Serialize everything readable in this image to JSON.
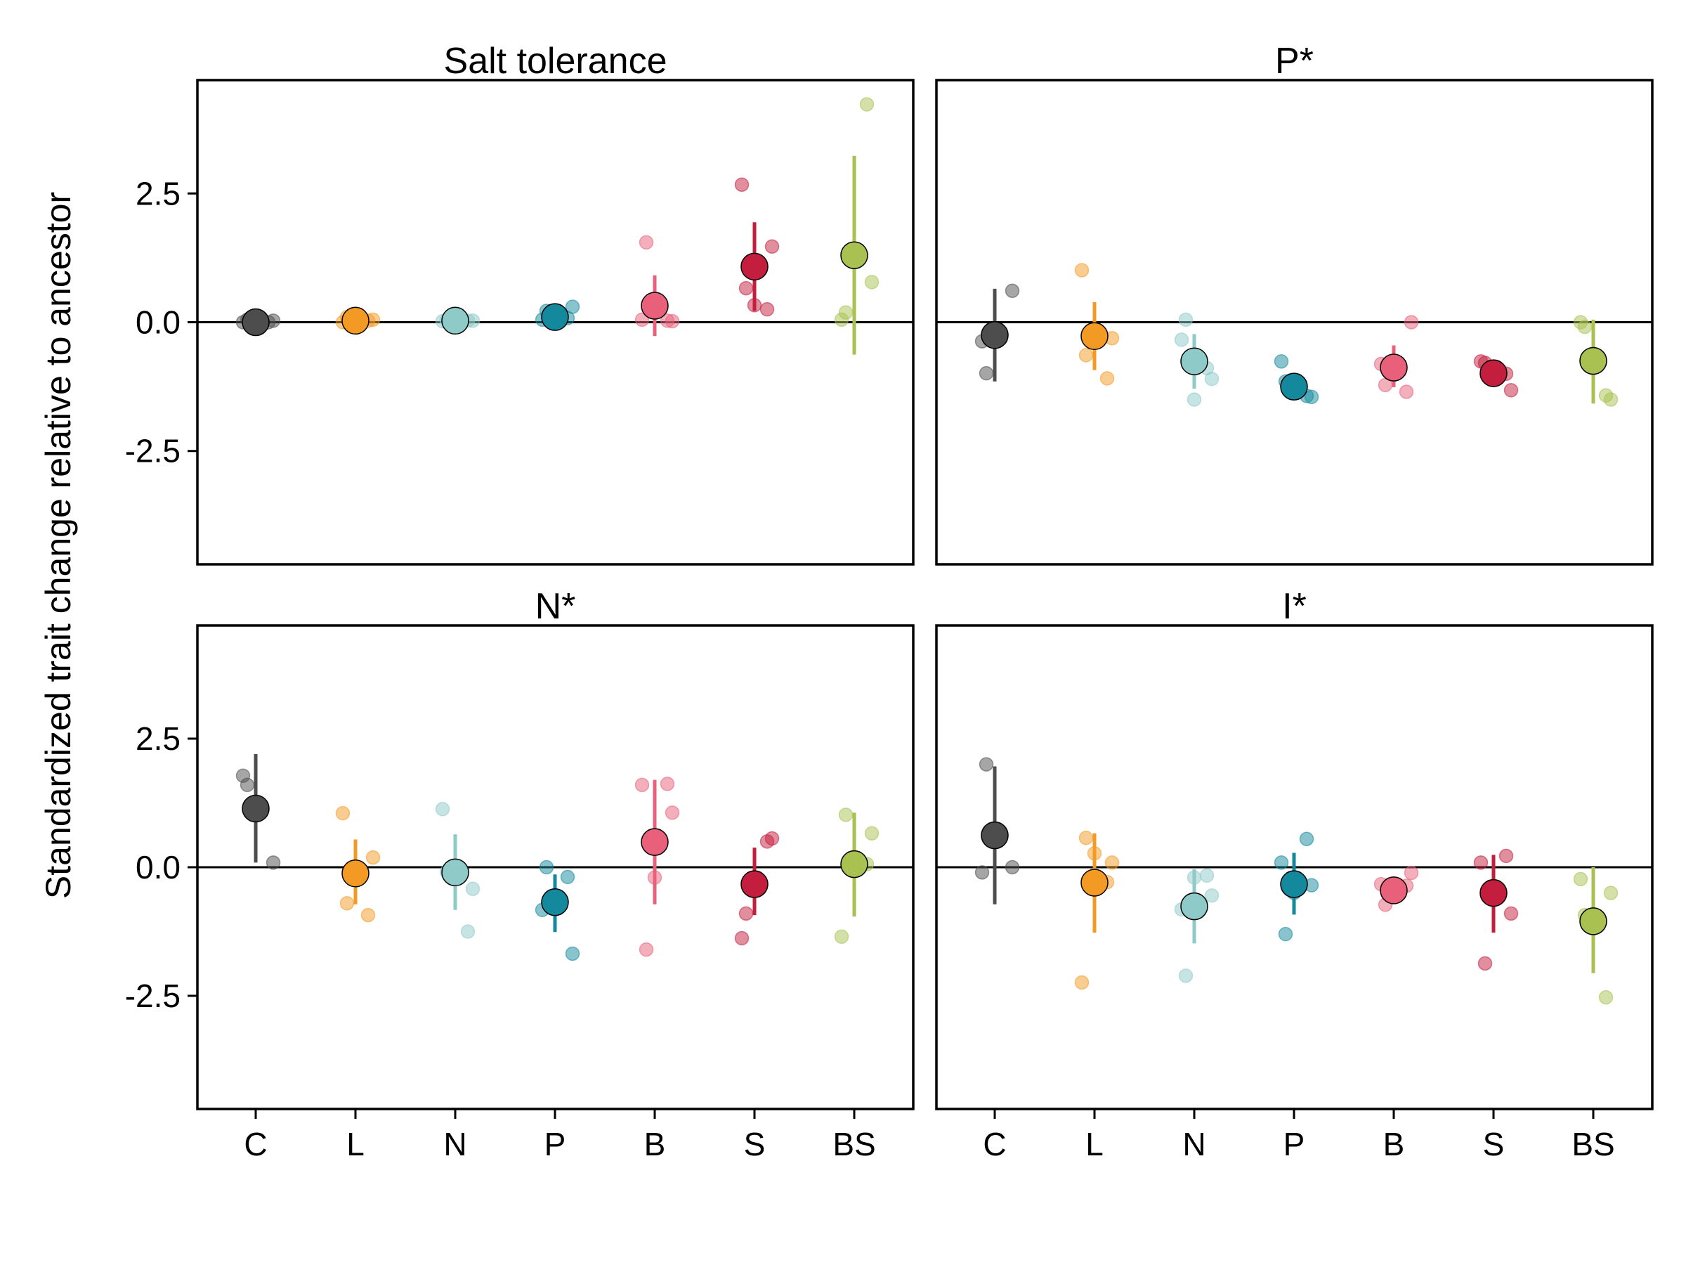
{
  "chart_data": {
    "type": "scatter",
    "ylabel": "Standardized trait change relative to ancestor",
    "categories": [
      "C",
      "L",
      "N",
      "P",
      "B",
      "S",
      "BS"
    ],
    "colors": {
      "C": "#4d4d4d",
      "L": "#f39a24",
      "N": "#8ecac8",
      "P": "#14899d",
      "B": "#e8607a",
      "S": "#c41e3e",
      "BS": "#a8c150"
    },
    "ylim": [
      -4.7,
      4.7
    ],
    "yticks": [
      2.5,
      0.0,
      -2.5
    ],
    "ytick_labels": [
      "2.5",
      "0.0",
      "-2.5"
    ],
    "reference_line": 0,
    "panels": [
      {
        "title": "Salt tolerance",
        "groups": [
          {
            "category": "C",
            "mean": 0.0,
            "ci": [
              0.0,
              0.0
            ],
            "replicates": [
              0.0,
              0.03,
              0.05,
              0.0
            ]
          },
          {
            "category": "L",
            "mean": 0.03,
            "ci": [
              0.03,
              0.03
            ],
            "replicates": [
              0.0,
              0.05,
              0.1,
              0.03
            ]
          },
          {
            "category": "N",
            "mean": 0.03,
            "ci": [
              0.03,
              0.03
            ],
            "replicates": [
              0.02,
              0.03,
              0.04,
              0.03
            ]
          },
          {
            "category": "P",
            "mean": 0.1,
            "ci": [
              0.05,
              0.15
            ],
            "replicates": [
              0.05,
              0.3,
              0.22,
              0.08
            ]
          },
          {
            "category": "B",
            "mean": 0.32,
            "ci": [
              -0.27,
              0.91
            ],
            "replicates": [
              0.05,
              0.02,
              1.55,
              0.03
            ]
          },
          {
            "category": "S",
            "mean": 1.08,
            "ci": [
              0.22,
              1.94
            ],
            "replicates": [
              2.67,
              1.47,
              0.66,
              0.25,
              0.33
            ]
          },
          {
            "category": "BS",
            "mean": 1.3,
            "ci": [
              -0.63,
              3.23
            ],
            "replicates": [
              0.05,
              0.78,
              0.19,
              4.23
            ]
          }
        ]
      },
      {
        "title": "P*",
        "groups": [
          {
            "category": "C",
            "mean": -0.25,
            "ci": [
              -1.15,
              0.65
            ],
            "replicates": [
              -0.37,
              0.61,
              -0.99
            ]
          },
          {
            "category": "L",
            "mean": -0.27,
            "ci": [
              -0.93,
              0.39
            ],
            "replicates": [
              1.01,
              -0.31,
              -0.64,
              -1.09
            ]
          },
          {
            "category": "N",
            "mean": -0.76,
            "ci": [
              -1.29,
              -0.23
            ],
            "replicates": [
              -0.34,
              -1.1,
              0.05,
              -0.89,
              -1.5
            ]
          },
          {
            "category": "P",
            "mean": -1.25,
            "ci": [
              -1.32,
              -1.16
            ],
            "replicates": [
              -0.76,
              -1.45,
              -1.15,
              -1.43
            ]
          },
          {
            "category": "B",
            "mean": -0.88,
            "ci": [
              -1.26,
              -0.45
            ],
            "replicates": [
              -0.81,
              0.0,
              -1.22,
              -1.35,
              -1.02
            ]
          },
          {
            "category": "S",
            "mean": -0.99,
            "ci": [
              -1.05,
              -0.93
            ],
            "replicates": [
              -0.76,
              -1.32,
              -0.79,
              -1.0
            ]
          },
          {
            "category": "BS",
            "mean": -0.75,
            "ci": [
              -1.58,
              0.05
            ],
            "replicates": [
              0.0,
              -1.5,
              -0.09,
              -1.42
            ]
          }
        ]
      },
      {
        "title": "N*",
        "groups": [
          {
            "category": "C",
            "mean": 1.14,
            "ci": [
              0.09,
              2.2
            ],
            "replicates": [
              1.78,
              0.09,
              1.6
            ]
          },
          {
            "category": "L",
            "mean": -0.12,
            "ci": [
              -0.72,
              0.54
            ],
            "replicates": [
              1.05,
              0.19,
              -0.7,
              -0.93,
              -0.22
            ]
          },
          {
            "category": "N",
            "mean": -0.1,
            "ci": [
              -0.83,
              0.64
            ],
            "replicates": [
              1.13,
              -0.42,
              -0.09,
              -1.25
            ]
          },
          {
            "category": "P",
            "mean": -0.68,
            "ci": [
              -1.26,
              -0.14
            ],
            "replicates": [
              -0.83,
              -1.68,
              0.0,
              -0.19,
              -0.72
            ]
          },
          {
            "category": "B",
            "mean": 0.49,
            "ci": [
              -0.72,
              1.7
            ],
            "replicates": [
              1.6,
              1.06,
              -1.6,
              1.62,
              -0.2
            ]
          },
          {
            "category": "S",
            "mean": -0.33,
            "ci": [
              -0.93,
              0.38
            ],
            "replicates": [
              -1.38,
              0.56,
              -0.9,
              0.5
            ]
          },
          {
            "category": "BS",
            "mean": 0.06,
            "ci": [
              -0.96,
              1.06
            ],
            "replicates": [
              -1.35,
              0.66,
              1.02,
              0.06
            ]
          }
        ]
      },
      {
        "title": "I*",
        "groups": [
          {
            "category": "C",
            "mean": 0.62,
            "ci": [
              -0.72,
              1.96
            ],
            "replicates": [
              -0.1,
              0.0,
              2.0
            ]
          },
          {
            "category": "L",
            "mean": -0.3,
            "ci": [
              -1.27,
              0.66
            ],
            "replicates": [
              -2.24,
              0.09,
              0.57,
              -0.29,
              0.27
            ]
          },
          {
            "category": "N",
            "mean": -0.76,
            "ci": [
              -1.48,
              -0.04
            ],
            "replicates": [
              -0.82,
              -0.55,
              -2.11,
              -0.16,
              -0.2
            ]
          },
          {
            "category": "P",
            "mean": -0.33,
            "ci": [
              -0.92,
              0.28
            ],
            "replicates": [
              0.09,
              -0.35,
              -1.3,
              0.55,
              -0.5
            ]
          },
          {
            "category": "B",
            "mean": -0.45,
            "ci": [
              -0.47,
              -0.43
            ],
            "replicates": [
              -0.33,
              -0.11,
              -0.73,
              -0.36
            ]
          },
          {
            "category": "S",
            "mean": -0.5,
            "ci": [
              -1.27,
              0.24
            ],
            "replicates": [
              0.09,
              -0.9,
              -1.87,
              0.22
            ]
          },
          {
            "category": "BS",
            "mean": -1.05,
            "ci": [
              -2.06,
              0.0
            ],
            "replicates": [
              -0.23,
              -0.5,
              -0.93,
              -2.53
            ]
          }
        ]
      }
    ]
  }
}
